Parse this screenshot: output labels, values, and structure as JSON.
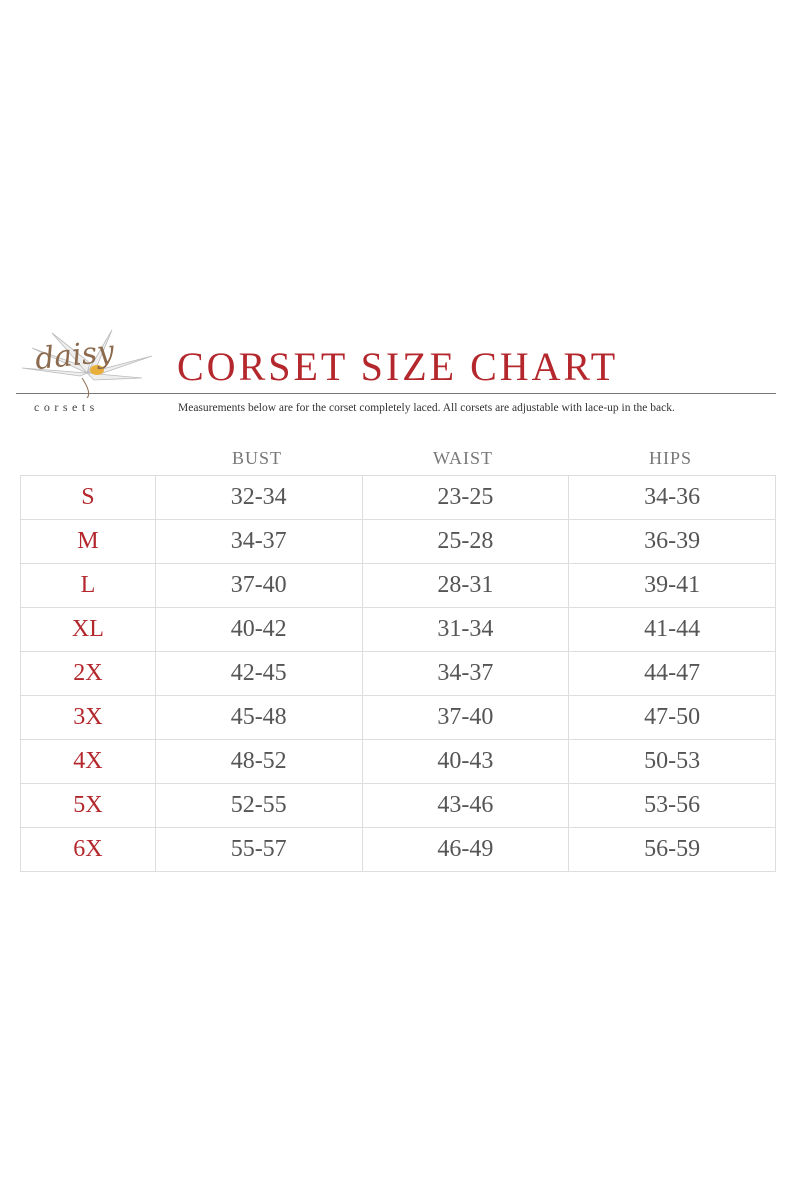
{
  "brand": {
    "logo_text": "daisy",
    "logo_subtext": "corsets"
  },
  "title": "CORSET SIZE CHART",
  "subtitle": "Measurements below are for the corset completely laced.  All corsets are adjustable with lace-up in the back.",
  "colors": {
    "accent": "#b4282d",
    "text": "#555555"
  },
  "table": {
    "headers": [
      "BUST",
      "WAIST",
      "HIPS"
    ],
    "rows": [
      {
        "size": "S",
        "bust": "32-34",
        "waist": "23-25",
        "hips": "34-36"
      },
      {
        "size": "M",
        "bust": "34-37",
        "waist": "25-28",
        "hips": "36-39"
      },
      {
        "size": "L",
        "bust": "37-40",
        "waist": "28-31",
        "hips": "39-41"
      },
      {
        "size": "XL",
        "bust": "40-42",
        "waist": "31-34",
        "hips": "41-44"
      },
      {
        "size": "2X",
        "bust": "42-45",
        "waist": "34-37",
        "hips": "44-47"
      },
      {
        "size": "3X",
        "bust": "45-48",
        "waist": "37-40",
        "hips": "47-50"
      },
      {
        "size": "4X",
        "bust": "48-52",
        "waist": "40-43",
        "hips": "50-53"
      },
      {
        "size": "5X",
        "bust": "52-55",
        "waist": "43-46",
        "hips": "53-56"
      },
      {
        "size": "6X",
        "bust": "55-57",
        "waist": "46-49",
        "hips": "56-59"
      }
    ]
  }
}
